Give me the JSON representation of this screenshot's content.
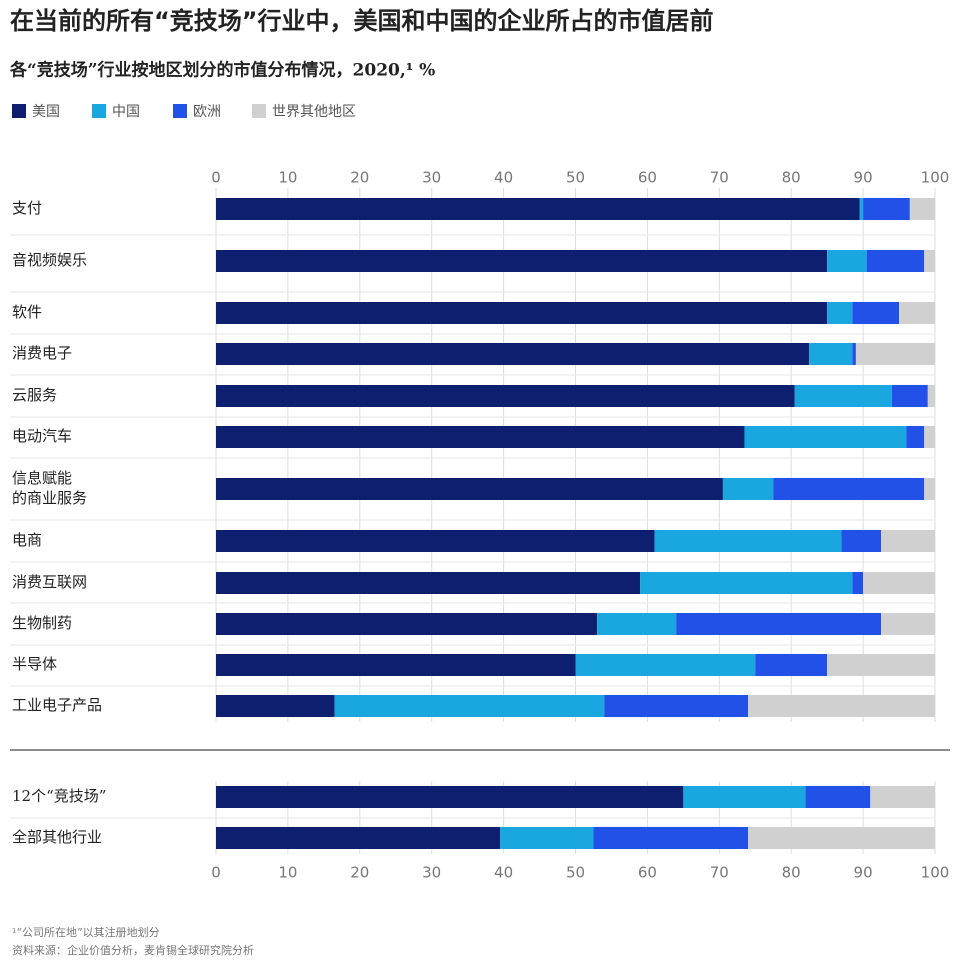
{
  "chart_data": {
    "type": "stacked-bar-horizontal",
    "title": "在当前的所有“竞技场”行业中，美国和中国的企业所占的市值居前",
    "subtitle": "各“竞技场”行业按地区划分的市值分布情况，2020,¹ %",
    "categories": [
      "支付",
      "音视频娱乐",
      "软件",
      "消费电子",
      "云服务",
      "电动汽车",
      "信息赋能\n的商业服务",
      "电商",
      "消费互联网",
      "生物制药",
      "半导体",
      "工业电子产品",
      "12个“竞技场”",
      "全部其他行业"
    ],
    "series": [
      {
        "name": "美国",
        "color": "#0d1f6e",
        "values": [
          89.5,
          85,
          85,
          82.5,
          80.5,
          73.5,
          70.5,
          61,
          59,
          53,
          50,
          16.5,
          65,
          39.5
        ]
      },
      {
        "name": "中国",
        "color": "#1aa7e0",
        "values": [
          0.5,
          5.5,
          3.5,
          6,
          13.5,
          22.5,
          7,
          26,
          29.5,
          11,
          25,
          37.5,
          17,
          13
        ]
      },
      {
        "name": "欧洲",
        "color": "#2251e8",
        "values": [
          6.5,
          8,
          6.5,
          0.5,
          5,
          2.5,
          21,
          5.5,
          1.5,
          28.5,
          10,
          20,
          9,
          21.5
        ]
      },
      {
        "name": "世界其他地区",
        "color": "#d0d0d0",
        "values": [
          3.5,
          1.5,
          5,
          11,
          1,
          1.5,
          1.5,
          7.5,
          10,
          7.5,
          15,
          26,
          9,
          26
        ]
      }
    ],
    "xlim": [
      0,
      100
    ],
    "xticks": [
      0,
      10,
      20,
      30,
      40,
      50,
      60,
      70,
      80,
      90,
      100
    ],
    "grid": true,
    "footnotes": [
      "¹“公司所在地”以其注册地划分",
      "资料来源：企业价值分析，麦肯锡全球研究院分析"
    ]
  }
}
